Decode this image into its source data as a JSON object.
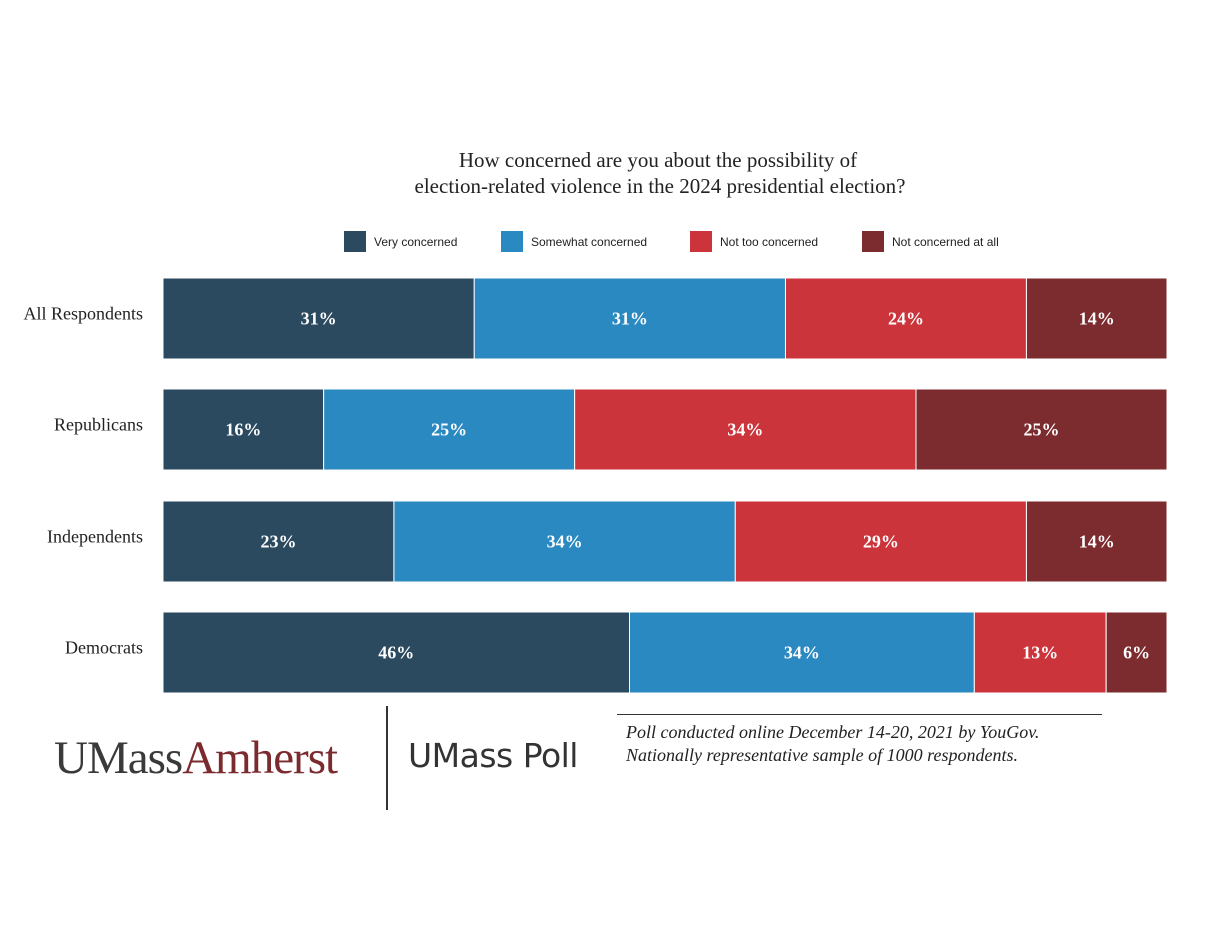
{
  "chart_data": {
    "type": "bar",
    "orientation": "horizontal",
    "stacked": true,
    "title_lines": [
      "How concerned are you about the possibility of",
      "election-related violence in the 2024 presidential election?"
    ],
    "categories": [
      "All Respondents",
      "Republicans",
      "Independents",
      "Democrats"
    ],
    "series": [
      {
        "name": "Very concerned",
        "color": "#2b4a5f",
        "values": [
          31,
          16,
          23,
          46
        ],
        "labels": [
          "31%",
          "16%",
          "23%",
          "46%"
        ]
      },
      {
        "name": "Somewhat concerned",
        "color": "#2a89c1",
        "values": [
          31,
          25,
          34,
          34
        ],
        "labels": [
          "31%",
          "25%",
          "34%",
          "34%"
        ]
      },
      {
        "name": "Not too concerned",
        "color": "#cc343b",
        "values": [
          24,
          34,
          29,
          13
        ],
        "labels": [
          "24%",
          "34%",
          "29%",
          "13%"
        ]
      },
      {
        "name": "Not concerned at all",
        "color": "#7c2b2f",
        "values": [
          14,
          25,
          14,
          6
        ],
        "labels": [
          "14%",
          "25%",
          "14%",
          "6%"
        ]
      }
    ],
    "legend_position": "top",
    "grid": false
  },
  "footer": {
    "logo_umass": "UMass",
    "logo_amherst": "Amherst",
    "logo_poll": "UMass Poll",
    "note_lines": [
      "Poll conducted online December 14-20, 2021 by YouGov.",
      "Nationally representative sample of 1000 respondents."
    ]
  }
}
